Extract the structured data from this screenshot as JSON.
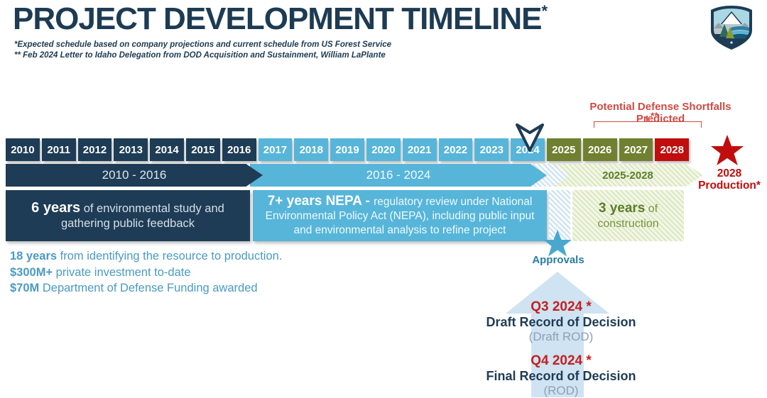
{
  "header": {
    "title": "PROJECT DEVELOPMENT TIMELINE",
    "title_asterisk": "*",
    "footnote1": "*Expected schedule based on company projections and current schedule from US Forest Service",
    "footnote2": "** Feb 2024 Letter to Idaho Delegation from DOD Acquisition and Sustainment, William LaPlante"
  },
  "shortfalls": {
    "label": "Potential Defense Shortfalls Predicted",
    "note": "**"
  },
  "timeline": {
    "years": [
      {
        "label": "2010",
        "color": "#1e3c55"
      },
      {
        "label": "2011",
        "color": "#1e3c55"
      },
      {
        "label": "2012",
        "color": "#1e3c55"
      },
      {
        "label": "2013",
        "color": "#1e3c55"
      },
      {
        "label": "2014",
        "color": "#1e3c55"
      },
      {
        "label": "2015",
        "color": "#1e3c55"
      },
      {
        "label": "2016",
        "color": "#1e3c55"
      },
      {
        "label": "2017",
        "color": "#57b5d9"
      },
      {
        "label": "2018",
        "color": "#57b5d9"
      },
      {
        "label": "2019",
        "color": "#57b5d9"
      },
      {
        "label": "2020",
        "color": "#57b5d9"
      },
      {
        "label": "2021",
        "color": "#57b5d9"
      },
      {
        "label": "2022",
        "color": "#57b5d9"
      },
      {
        "label": "2023",
        "color": "#57b5d9"
      },
      {
        "label": "2024",
        "color": "#57b5d9"
      },
      {
        "label": "2025",
        "color": "#6f8030"
      },
      {
        "label": "2026",
        "color": "#6f8030"
      },
      {
        "label": "2027",
        "color": "#6f8030"
      },
      {
        "label": "2028",
        "color": "#c00d0d"
      }
    ],
    "ranges": {
      "range1": "2010 - 2016",
      "range2": "2016 - 2024",
      "range3": "2025-2028"
    }
  },
  "production": {
    "line1": "2028",
    "line2": "Production*"
  },
  "blocks": {
    "study": {
      "lead": "6 years",
      "rest": " of environmental study and gathering public feedback"
    },
    "nepa": {
      "lead": "7+ years NEPA - ",
      "rest": "regulatory review under National Environmental Policy Act (NEPA), including public input and environmental analysis to refine project"
    },
    "construction": {
      "lead": "3 years",
      "rest": " of construction"
    }
  },
  "approvals": {
    "label": "Approvals"
  },
  "stats": [
    {
      "lead": "18 years",
      "rest": " from identifying the resource to production."
    },
    {
      "lead": "$300M+",
      "rest": " private investment to-date"
    },
    {
      "lead": "$70M",
      "rest": " Department of Defense Funding awarded"
    }
  ],
  "decisions": [
    {
      "quarter": "Q3 2024 *",
      "title": "Draft Record of Decision",
      "sub": "(Draft ROD)"
    },
    {
      "quarter": "Q4 2024 *",
      "title": "Final Record of Decision",
      "sub": "(ROD)"
    }
  ],
  "colors": {
    "navy": "#1e3c55",
    "light_blue": "#57b5d9",
    "olive": "#6f8030",
    "red": "#c00d0d",
    "annotation_red": "#cf4b44",
    "pale_arrow_blue": "#cfe3f2",
    "construction_green_text": "#5d7d2a",
    "stats_blue": "#4a9ac2"
  }
}
